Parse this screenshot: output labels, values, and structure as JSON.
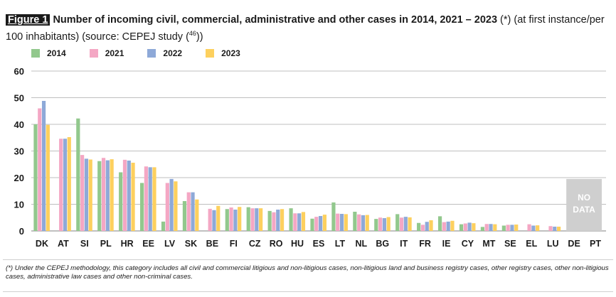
{
  "figure": {
    "label": "Figure 1",
    "title": "Number of incoming civil, commercial, administrative and other cases in 2014, 2021 – 2023",
    "title_suffix": " (*) (at first instance/per 100 inhabitants) (source: CEPEJ study (",
    "source_ref": "46",
    "title_end": "))"
  },
  "chart_data": {
    "type": "bar",
    "title": "Number of incoming civil, commercial, administrative and other cases in 2014, 2021 – 2023",
    "xlabel": "",
    "ylabel": "",
    "ylim": [
      0,
      60
    ],
    "yticks": [
      0,
      10,
      20,
      30,
      40,
      50,
      60
    ],
    "grid": true,
    "legend_position": "top-left",
    "categories": [
      "DK",
      "AT",
      "SI",
      "PL",
      "HR",
      "EE",
      "LV",
      "SK",
      "BE",
      "FI",
      "CZ",
      "RO",
      "HU",
      "ES",
      "LT",
      "NL",
      "BG",
      "IT",
      "FR",
      "IE",
      "CY",
      "MT",
      "SE",
      "EL",
      "LU",
      "DE",
      "PT"
    ],
    "series": [
      {
        "name": "2014",
        "color": "#92c88d",
        "values": [
          40.0,
          null,
          42.2,
          26.2,
          22.0,
          18.0,
          3.5,
          11.2,
          null,
          8.2,
          8.9,
          7.5,
          8.5,
          4.6,
          10.7,
          7.2,
          4.5,
          6.3,
          3.0,
          5.5,
          2.5,
          1.5,
          2.0,
          null,
          null,
          null,
          null
        ]
      },
      {
        "name": "2021",
        "color": "#f4a7c4",
        "values": [
          46.0,
          34.6,
          28.5,
          27.4,
          26.7,
          24.2,
          18.0,
          14.5,
          8.3,
          8.8,
          8.5,
          7.0,
          6.6,
          5.3,
          6.5,
          6.2,
          5.0,
          5.0,
          2.3,
          3.3,
          2.8,
          2.6,
          2.3,
          2.5,
          1.8,
          null,
          null
        ]
      },
      {
        "name": "2022",
        "color": "#8ea9d8",
        "values": [
          48.8,
          34.6,
          27.1,
          26.5,
          26.4,
          23.9,
          19.5,
          14.5,
          7.8,
          8.0,
          8.5,
          8.0,
          6.6,
          5.6,
          6.4,
          5.9,
          4.8,
          5.3,
          3.4,
          3.5,
          3.1,
          2.6,
          2.3,
          2.0,
          1.6,
          null,
          null
        ]
      },
      {
        "name": "2023",
        "color": "#fdd05e",
        "values": [
          39.8,
          35.2,
          26.8,
          26.9,
          25.6,
          23.9,
          18.6,
          11.8,
          9.4,
          9.0,
          8.5,
          8.2,
          7.1,
          6.1,
          6.3,
          6.0,
          5.2,
          5.1,
          4.0,
          3.8,
          2.9,
          2.5,
          2.4,
          2.1,
          1.6,
          null,
          null
        ]
      }
    ],
    "annotations": [
      {
        "category": "DE",
        "text_line1": "NO",
        "text_line2": "DATA",
        "color": "#cfcfcf"
      }
    ]
  },
  "footnote": "(*) Under the CEPEJ methodology, this category includes all civil and commercial litigious and non-litigious cases, non-litigious land and business registry cases, other registry cases, other non-litigious cases, administrative law cases and other non-criminal cases."
}
